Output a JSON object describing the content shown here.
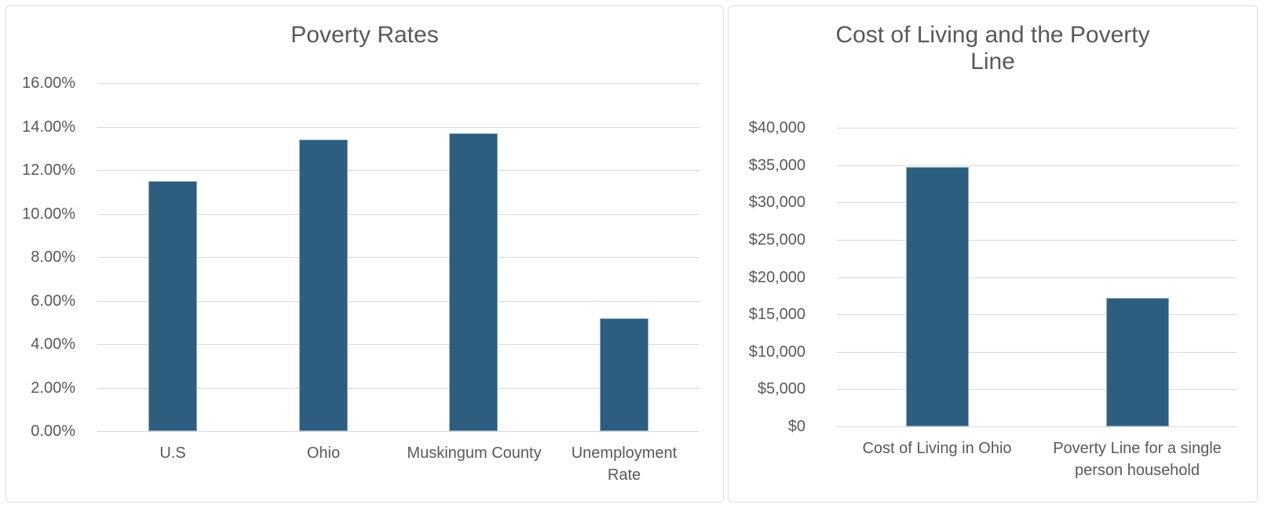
{
  "page": {
    "background": "#ffffff",
    "panel_border_color": "#dcdcdc",
    "panel_background": "#ffffff"
  },
  "colors": {
    "bar_fill": "#2d5e7f",
    "bar_edge": "#8fadc0",
    "gridline": "#d9d9d9",
    "axis_text": "#595959",
    "title_text": "#595959"
  },
  "chart_data": [
    {
      "type": "bar",
      "title": "Poverty Rates",
      "categories": [
        "U.S",
        "Ohio",
        "Muskingum County",
        "Unemployment\nRate"
      ],
      "values": [
        11.5,
        13.4,
        13.7,
        5.2
      ],
      "unit": "percent",
      "xlabel": "",
      "ylabel": "",
      "ylim": [
        0,
        16
      ],
      "ytick_step": 2,
      "ytick_labels": [
        "0.00%",
        "2.00%",
        "4.00%",
        "6.00%",
        "8.00%",
        "10.00%",
        "12.00%",
        "14.00%",
        "16.00%"
      ],
      "grid": true,
      "legend": "none",
      "bar_color": "#2d5e7f"
    },
    {
      "type": "bar",
      "title": "Cost of Living and the Poverty Line",
      "categories": [
        "Cost of Living in Ohio",
        "Poverty Line for a single\nperson household"
      ],
      "values": [
        34800,
        17200
      ],
      "unit": "USD",
      "xlabel": "",
      "ylabel": "",
      "ylim": [
        0,
        40000
      ],
      "ytick_step": 5000,
      "ytick_labels": [
        "$0",
        "$5,000",
        "$10,000",
        "$15,000",
        "$20,000",
        "$25,000",
        "$30,000",
        "$35,000",
        "$40,000"
      ],
      "grid": true,
      "legend": "none",
      "bar_color": "#2d5e7f"
    }
  ]
}
